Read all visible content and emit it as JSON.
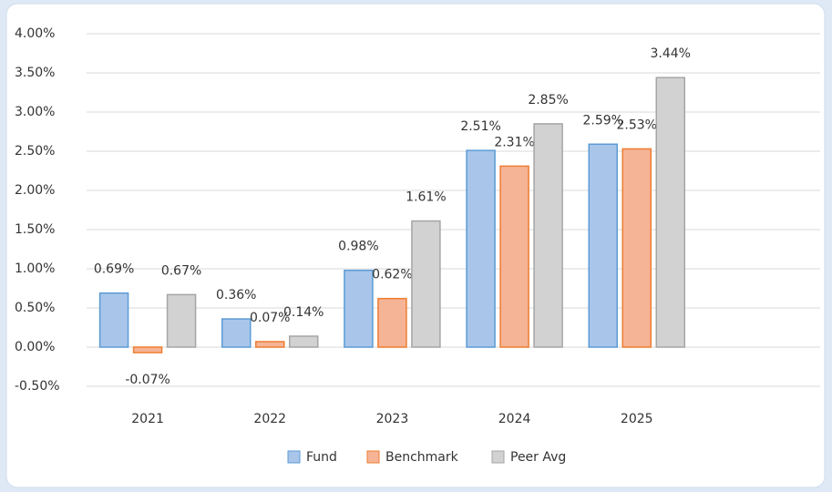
{
  "chart_data": {
    "type": "bar",
    "categories": [
      "2021",
      "2022",
      "2023",
      "2024",
      "2025",
      null
    ],
    "series": [
      {
        "name": "Fund",
        "color": "#a9c6ea",
        "border": "#5b9bd5",
        "values": [
          0.69,
          0.36,
          0.98,
          2.51,
          2.59,
          null
        ],
        "value_labels": [
          "0.69%",
          "0.36%",
          "0.98%",
          "2.51%",
          "2.59%",
          null
        ]
      },
      {
        "name": "Benchmark",
        "color": "#f6b496",
        "border": "#ed7d31",
        "values": [
          -0.07,
          0.07,
          0.62,
          2.31,
          2.53,
          null
        ],
        "value_labels": [
          "-0.07%",
          "0.07%",
          "0.62%",
          "2.31%",
          "2.53%",
          null
        ]
      },
      {
        "name": "Peer Avg",
        "color": "#d2d2d2",
        "border": "#a5a5a5",
        "values": [
          0.67,
          0.14,
          1.61,
          2.85,
          3.44,
          null
        ],
        "value_labels": [
          "0.67%",
          "0.14%",
          "1.61%",
          "2.85%",
          "3.44%",
          null
        ]
      }
    ],
    "ylim": [
      -0.5,
      4
    ],
    "yticks": [
      {
        "value": -0.5,
        "label": "-0.50%"
      },
      {
        "value": 0,
        "label": "0.00%"
      },
      {
        "value": 0.5,
        "label": "0.50%"
      },
      {
        "value": 1,
        "label": "1.00%"
      },
      {
        "value": 1.5,
        "label": "1.50%"
      },
      {
        "value": 2,
        "label": "2.00%"
      },
      {
        "value": 2.5,
        "label": "2.50%"
      },
      {
        "value": 3,
        "label": "3.00%"
      },
      {
        "value": 3.5,
        "label": "3.50%"
      },
      {
        "value": 4,
        "label": "4.00%"
      }
    ],
    "grid": true,
    "legend": "bottom"
  }
}
